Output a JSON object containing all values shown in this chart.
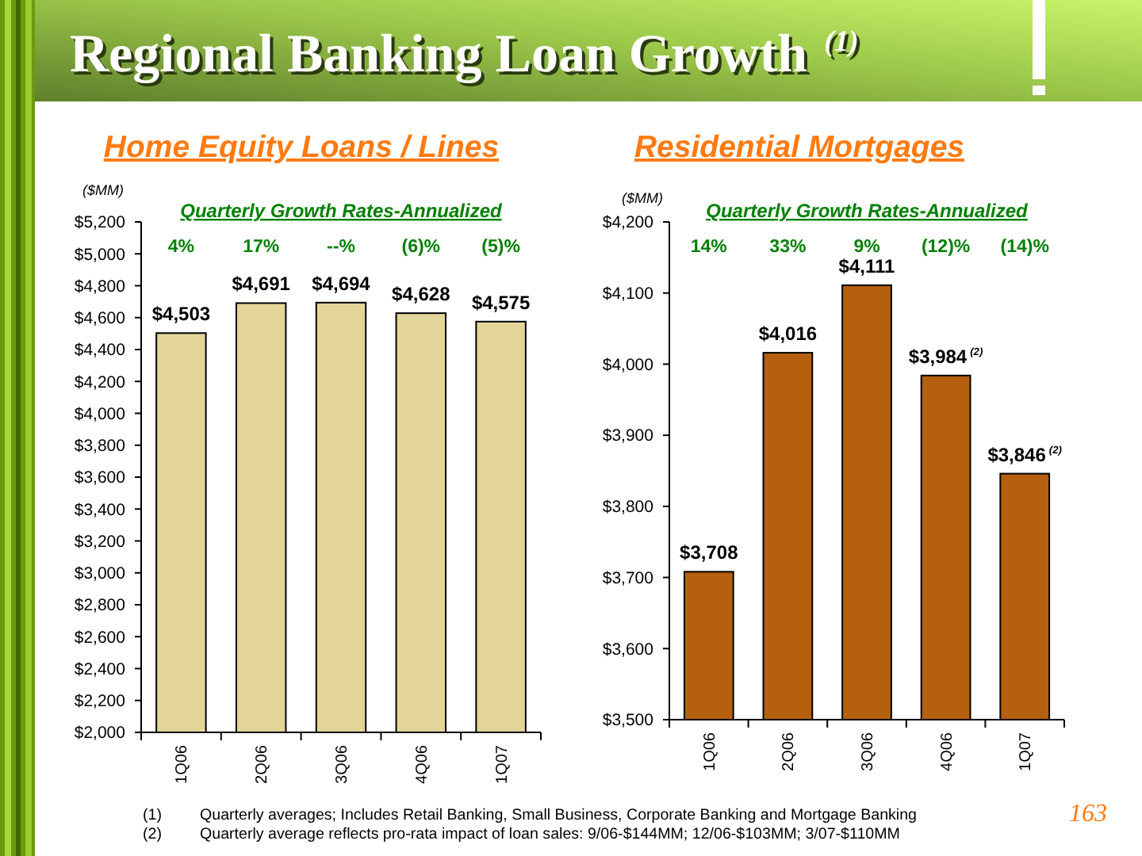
{
  "chart_data": [
    {
      "type": "bar",
      "title": "Home Equity Loans / Lines",
      "subtitle": "Quarterly Growth Rates-Annualized",
      "ylabel": "($MM)",
      "categories": [
        "1Q06",
        "2Q06",
        "3Q06",
        "4Q06",
        "1Q07"
      ],
      "values": [
        4503,
        4691,
        4694,
        4628,
        4575
      ],
      "color": "#e3d49a",
      "value_labels": [
        "$4,503",
        "$4,691",
        "$4,694",
        "$4,628",
        "$4,575"
      ],
      "ylim": [
        2000,
        5200
      ],
      "yticks": [
        {
          "value": 2000,
          "label": "$2,000"
        },
        {
          "value": 2200,
          "label": "$2,200"
        },
        {
          "value": 2400,
          "label": "$2,400"
        },
        {
          "value": 2600,
          "label": "$2,600"
        },
        {
          "value": 2800,
          "label": "$2,800"
        },
        {
          "value": 3000,
          "label": "$3,000"
        },
        {
          "value": 3200,
          "label": "$3,200"
        },
        {
          "value": 3400,
          "label": "$3,400"
        },
        {
          "value": 3600,
          "label": "$3,600"
        },
        {
          "value": 3800,
          "label": "$3,800"
        },
        {
          "value": 4000,
          "label": "$4,000"
        },
        {
          "value": 4200,
          "label": "$4,200"
        },
        {
          "value": 4400,
          "label": "$4,400"
        },
        {
          "value": 4600,
          "label": "$4,600"
        },
        {
          "value": 4800,
          "label": "$4,800"
        },
        {
          "value": 5000,
          "label": "$5,000"
        },
        {
          "value": 5200,
          "label": "$5,200"
        }
      ],
      "annotations": [
        "Regional Banking Loan Growth $^{(1)}$",
        "4%",
        "17%",
        "--%",
        "(6)%",
        "(5)%",
        "(1) Quarterly averages; Includes Retail Banking, Small Business, Corporate Banking and Mortgage Banking",
        "(2) Quarterly average reflects pro-rata impact of loan sales: 9/06-$144MM; 12/06-$103MM; 3/07-$110MM",
        "163"
      ]
    },
    {
      "type": "bar",
      "title": "Residential Mortgages",
      "subtitle": "Quarterly Growth Rates-Annualized",
      "ylabel": "($MM)",
      "categories": [
        "1Q06",
        "2Q06",
        "3Q06",
        "4Q06",
        "1Q07"
      ],
      "values": [
        3708,
        4016,
        4111,
        3984,
        3846
      ],
      "color": "#b5600f",
      "value_labels": [
        "$3,708",
        "$4,016",
        "$4,111",
        "$3,984$^{(2)}$",
        "$3,846$^{(2)}$"
      ],
      "ylim": [
        3500,
        4200
      ],
      "yticks": [
        {
          "value": 3500,
          "label": "$3,500"
        },
        {
          "value": 3600,
          "label": "$3,600"
        },
        {
          "value": 3700,
          "label": "$3,700"
        },
        {
          "value": 3800,
          "label": "$3,800"
        },
        {
          "value": 3900,
          "label": "$3,900"
        },
        {
          "value": 4000,
          "label": "$4,000"
        },
        {
          "value": 4100,
          "label": "$4,100"
        },
        {
          "value": 4200,
          "label": "$4,200"
        }
      ],
      "annotations": [
        "14%",
        "33%",
        "9%",
        "(12)%",
        "(14)%"
      ]
    }
  ]
}
